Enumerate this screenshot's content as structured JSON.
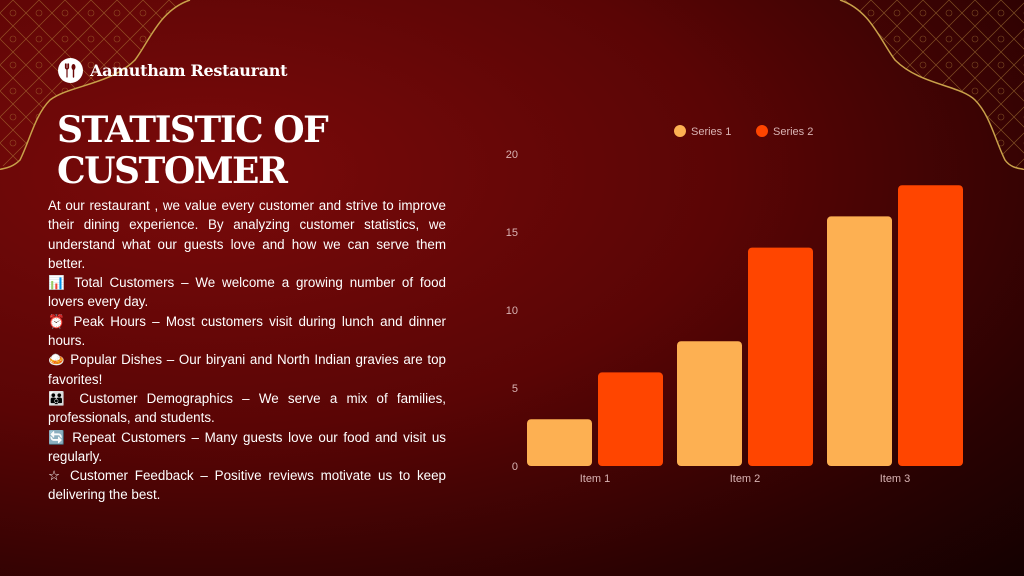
{
  "brand": {
    "name": "Aamutham Restaurant",
    "logo_icon": "fork-spoon-icon"
  },
  "title_line1": "STATISTIC OF",
  "title_line2": "CUSTOMER",
  "intro": "At our restaurant , we value every customer and strive to improve their dining experience. By analyzing customer statistics, we understand what our guests love and how we can serve them better.",
  "items": [
    {
      "icon": "📊",
      "icon_name": "bar-chart-icon",
      "text": "Total Customers – We welcome a growing number of food lovers every day."
    },
    {
      "icon": "⏰",
      "icon_name": "alarm-clock-icon",
      "text": "Peak Hours – Most customers visit during lunch and dinner hours."
    },
    {
      "icon": "🍛",
      "icon_name": "curry-plate-icon",
      "text": "Popular Dishes – Our biryani and North Indian gravies are top favorites!"
    },
    {
      "icon": "👪",
      "icon_name": "people-icon",
      "text": "Customer Demographics – We serve a mix of families, professionals, and students."
    },
    {
      "icon": "🔄",
      "icon_name": "repeat-icon",
      "text": "Repeat Customers – Many guests love our food and visit us regularly."
    },
    {
      "icon": "☆",
      "icon_name": "star-icon",
      "text": "Customer Feedback – Positive reviews motivate us to keep delivering the best."
    }
  ],
  "chart_data": {
    "type": "bar",
    "categories": [
      "Item 1",
      "Item 2",
      "Item 3"
    ],
    "series": [
      {
        "name": "Series 1",
        "values": [
          3,
          8,
          16
        ],
        "color": "#fdb052"
      },
      {
        "name": "Series 2",
        "values": [
          6,
          14,
          18
        ],
        "color": "#ff4500"
      }
    ],
    "ylim": [
      0,
      20
    ],
    "yticks": [
      0,
      5,
      10,
      15,
      20
    ],
    "legend": "top-center",
    "grid": false
  },
  "colors": {
    "frame_gold": "#c9a14a",
    "background": "#5a0505"
  }
}
